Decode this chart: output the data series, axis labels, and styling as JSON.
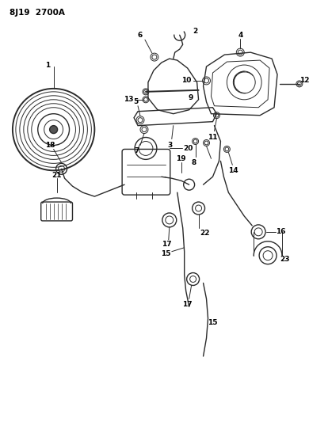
{
  "title": "8J19 2700A",
  "bg": "#f5f5f0",
  "lc": "#2a2a2a",
  "figsize": [
    3.9,
    5.33
  ],
  "dpi": 100,
  "label_fs": 6.5
}
